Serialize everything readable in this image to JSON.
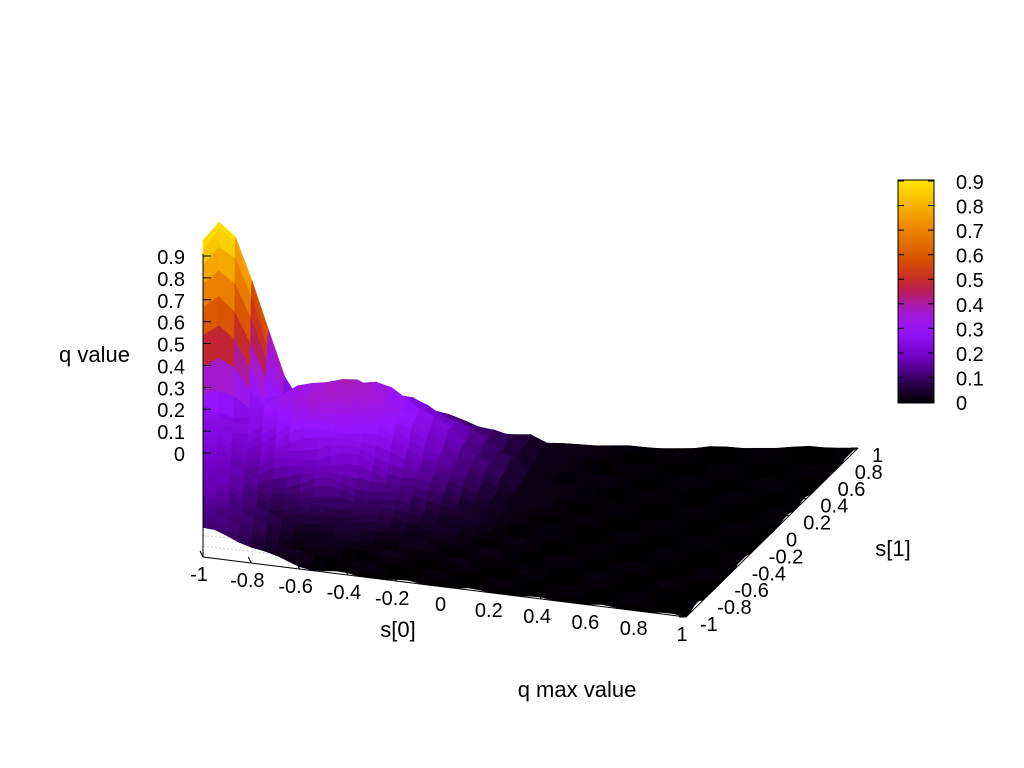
{
  "chart_data": {
    "type": "surface3d",
    "title": "",
    "xlabel": "s[0]",
    "ylabel": "s[1]",
    "zlabel": "q value",
    "caption": "q max value",
    "xlim": [
      -1,
      1
    ],
    "ylim": [
      -1,
      1
    ],
    "zlim": [
      0,
      0.9
    ],
    "x_ticks": [
      "-1",
      "-0.8",
      "-0.6",
      "-0.4",
      "-0.2",
      "0",
      "0.2",
      "0.4",
      "0.6",
      "0.8",
      "1"
    ],
    "y_ticks": [
      "-1",
      "-0.8",
      "-0.6",
      "-0.4",
      "-0.2",
      "0",
      "0.2",
      "0.4",
      "0.6",
      "0.8",
      "1"
    ],
    "y_tick_labels_shown": [
      "-1",
      "-0.8",
      "-0.6",
      "-0.4",
      "-0.2",
      "0",
      "0.2",
      "0.4",
      "0.6",
      "0.8",
      "1"
    ],
    "z_ticks": [
      "0",
      "0.1",
      "0.2",
      "0.3",
      "0.4",
      "0.5",
      "0.6",
      "0.7",
      "0.8",
      "0.9"
    ],
    "colorbar": {
      "range": [
        0,
        0.9
      ],
      "ticks": [
        "0",
        "0.1",
        "0.2",
        "0.3",
        "0.4",
        "0.5",
        "0.6",
        "0.7",
        "0.8",
        "0.9"
      ],
      "palette": [
        "#000000",
        "#3a0060",
        "#7000c0",
        "#9a10ff",
        "#a020d0",
        "#c02030",
        "#d85000",
        "#f08a00",
        "#ffe000"
      ]
    },
    "grid": true,
    "surface_peak": {
      "s0": -0.95,
      "s1": 0.95,
      "q": 0.92
    }
  }
}
